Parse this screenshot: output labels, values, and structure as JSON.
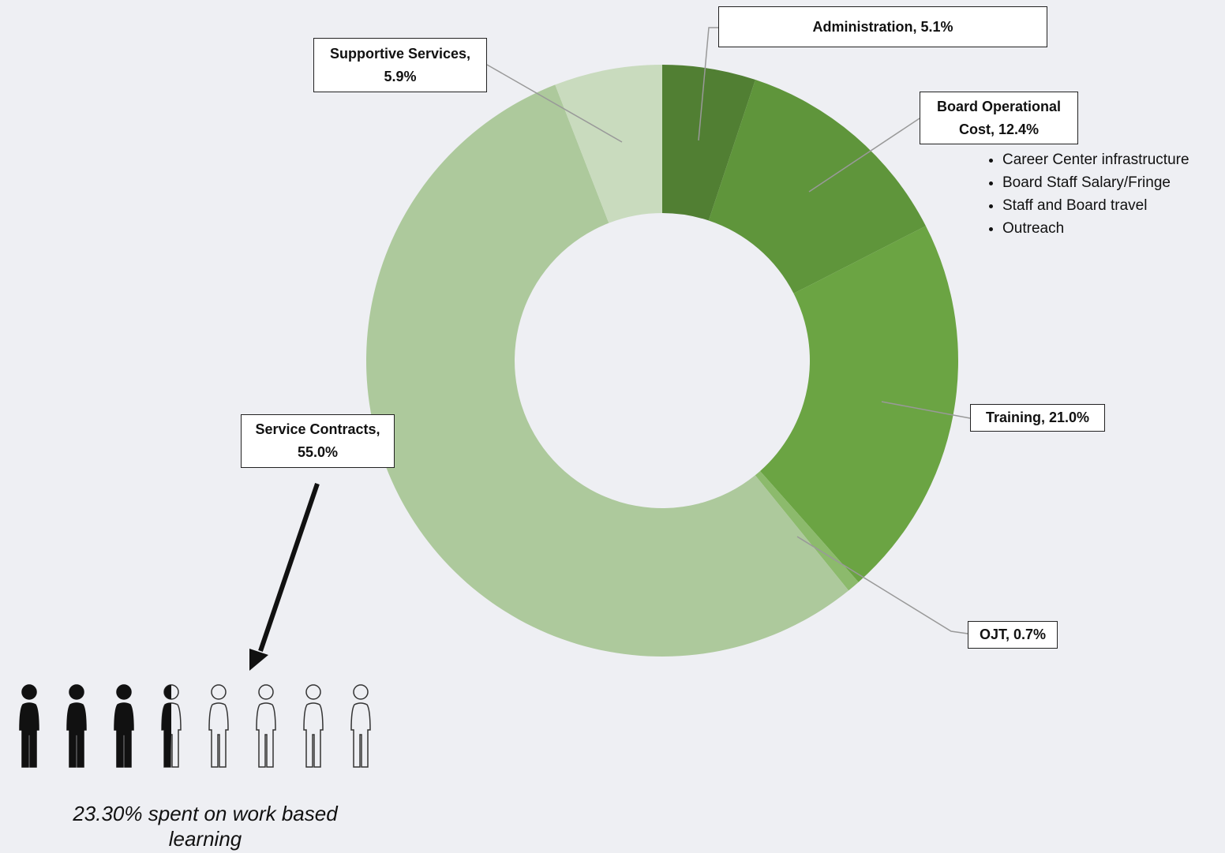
{
  "chart_data": {
    "type": "donut",
    "labels": [
      "Administration, 5.1%",
      "Board Operational Cost, 12.4%",
      "Training, 21.0%",
      "OJT, 0.7%",
      "Service Contracts, 55.0%",
      "Supportive Services, 5.9%"
    ],
    "values": [
      5.1,
      12.4,
      21.0,
      0.7,
      55.0,
      5.9
    ],
    "colors": [
      "#517f33",
      "#5f953b",
      "#6ba443",
      "#8cba6c",
      "#adc99c",
      "#c9dbbe"
    ],
    "bullets": [
      "Career Center infrastructure",
      "Board Staff Salary/Fringe",
      "Staff and Board travel",
      "Outreach"
    ],
    "annotation": "23.30% spent on work based learning"
  }
}
